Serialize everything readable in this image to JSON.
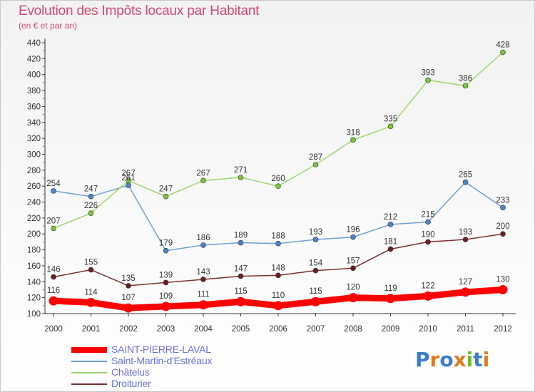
{
  "title": "Evolution des Impôts locaux par Habitant",
  "subtitle": "(en € et par an)",
  "logo": {
    "text": "Proxiti",
    "letters": [
      {
        "ch": "P",
        "color": "#3b7dc9"
      },
      {
        "ch": "r",
        "color": "#e07b1a"
      },
      {
        "ch": "o",
        "color": "#3b7dc9"
      },
      {
        "ch": "x",
        "color": "#e07b1a"
      },
      {
        "ch": "i",
        "color": "#6cbf2a"
      },
      {
        "ch": "t",
        "color": "#3b7dc9"
      },
      {
        "ch": "i",
        "color": "#e07b1a"
      }
    ]
  },
  "chart_data": {
    "type": "line",
    "title": "Evolution des Impôts locaux par Habitant",
    "subtitle": "(en € et par an)",
    "xlabel": "",
    "ylabel": "",
    "x": [
      "2000",
      "2001",
      "2002",
      "2003",
      "2004",
      "2005",
      "2006",
      "2007",
      "2008",
      "2009",
      "2010",
      "2011",
      "2012"
    ],
    "ylim": [
      100,
      440
    ],
    "yticks": [
      100,
      120,
      140,
      160,
      180,
      200,
      220,
      240,
      260,
      280,
      300,
      320,
      340,
      360,
      380,
      400,
      420,
      440
    ],
    "grid": false,
    "legend_position": "bottom-left",
    "series": [
      {
        "name": "SAINT-PIERRE-LAVAL",
        "color": "#ff0000",
        "marker": "#ff0000",
        "emphasis": true,
        "values": [
          116,
          114,
          107,
          109,
          111,
          115,
          110,
          115,
          120,
          119,
          122,
          127,
          130
        ]
      },
      {
        "name": "Saint-Martin-d'Estréaux",
        "color": "#6e9fd4",
        "marker": "#4a86c8",
        "emphasis": false,
        "values": [
          254,
          247,
          261,
          179,
          186,
          189,
          188,
          193,
          196,
          212,
          215,
          265,
          233
        ]
      },
      {
        "name": "Châtelus",
        "color": "#9ad86a",
        "marker": "#7cc63c",
        "emphasis": false,
        "values": [
          207,
          226,
          267,
          247,
          267,
          271,
          260,
          287,
          318,
          335,
          393,
          386,
          428
        ]
      },
      {
        "name": "Droiturier",
        "color": "#7a3030",
        "marker": "#6b1f1f",
        "emphasis": false,
        "values": [
          146,
          155,
          135,
          139,
          143,
          147,
          148,
          154,
          157,
          181,
          190,
          193,
          200
        ]
      }
    ]
  }
}
